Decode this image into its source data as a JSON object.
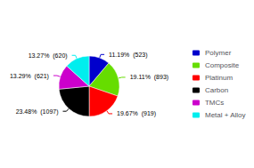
{
  "chart_data": {
    "type": "pie",
    "categories": [
      "Polymer",
      "Composite",
      "Platinum",
      "Carbon",
      "TMCs",
      "Metal + Alloy"
    ],
    "values": [
      11.19,
      19.11,
      19.67,
      23.48,
      13.29,
      13.27
    ],
    "value_labels": [
      "11.19%  (523)",
      "19.11%  (893)",
      "19.67%  (919)",
      "23.48%  (1097)",
      "13.29%  (621)",
      "13.27%  (620)"
    ],
    "colors": [
      "#0000cc",
      "#66dd00",
      "#ff0000",
      "#000000",
      "#cc00cc",
      "#00eeee"
    ],
    "data_labels": true,
    "legend": "right"
  }
}
